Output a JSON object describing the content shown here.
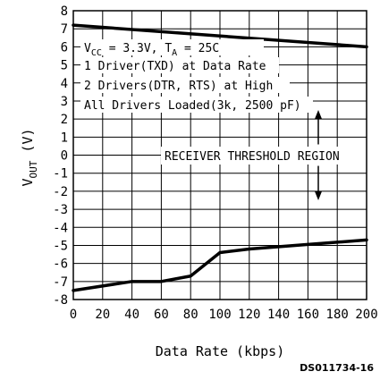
{
  "chart_data": {
    "type": "line",
    "xlabel": "Data Rate (kbps)",
    "ylabel_main": "V",
    "ylabel_sub": "OUT",
    "ylabel_unit": "(V)",
    "xlim": [
      0,
      200
    ],
    "ylim": [
      -8,
      8
    ],
    "x_ticks": [
      0,
      20,
      40,
      60,
      80,
      100,
      120,
      140,
      160,
      180,
      200
    ],
    "y_ticks": [
      8,
      7,
      6,
      5,
      4,
      3,
      2,
      1,
      0,
      -1,
      -2,
      -3,
      -4,
      -5,
      -6,
      -7,
      -8
    ],
    "grid": true,
    "series": [
      {
        "x": [
          0,
          200
        ],
        "y": [
          7.2,
          6.0
        ]
      },
      {
        "x": [
          0,
          40,
          60,
          80,
          100,
          120,
          160,
          200
        ],
        "y": [
          -7.5,
          -7.0,
          -7.0,
          -6.7,
          -5.4,
          -5.2,
          -4.95,
          -4.7
        ]
      }
    ],
    "annotations": {
      "conditions": {
        "vcc_v": "V",
        "vcc_sub": "CC",
        "vcc_rest": " = 3.3V, T",
        "ta_sub": "A",
        "ta_rest": " = 25C"
      },
      "line2": "1 Driver(TXD) at Data Rate",
      "line3": "2 Drivers(DTR, RTS) at High",
      "line4": "All Drivers Loaded(3k, 2500 pF)",
      "region": "RECEIVER THRESHOLD REGION",
      "region_arrow": {
        "from": 2.5,
        "to": -2.5
      }
    },
    "figure_id": "DS011734-16"
  }
}
